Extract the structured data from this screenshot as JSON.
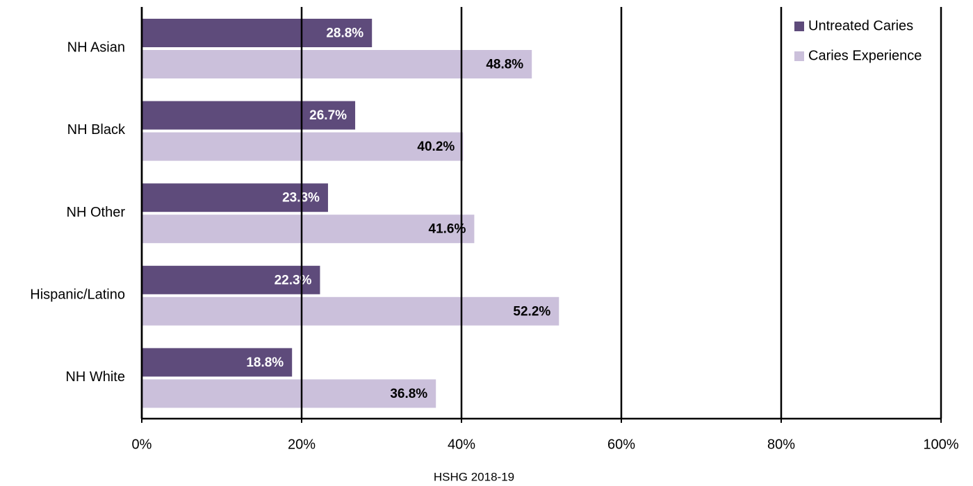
{
  "chart_data": {
    "type": "bar",
    "orientation": "horizontal",
    "categories": [
      "NH Asian",
      "NH Black",
      "NH Other",
      "Hispanic/Latino",
      "NH White"
    ],
    "series": [
      {
        "name": "Untreated Caries",
        "color": "#5e4b7b",
        "values": [
          28.8,
          26.7,
          23.3,
          22.3,
          18.8
        ],
        "value_labels": [
          "28.8%",
          "26.7%",
          "23.3%",
          "22.3%",
          "18.8%"
        ]
      },
      {
        "name": "Caries Experience",
        "color": "#cbc0db",
        "values": [
          48.8,
          40.2,
          41.6,
          52.2,
          36.8
        ],
        "value_labels": [
          "48.8%",
          "40.2%",
          "41.6%",
          "52.2%",
          "36.8%"
        ]
      }
    ],
    "xlim": [
      0,
      100
    ],
    "xticks": [
      {
        "value": 0,
        "label": "0%"
      },
      {
        "value": 20,
        "label": "20%"
      },
      {
        "value": 40,
        "label": "40%"
      },
      {
        "value": 60,
        "label": "60%"
      },
      {
        "value": 80,
        "label": "80%"
      },
      {
        "value": 100,
        "label": "100%"
      }
    ],
    "x_label": "HSHG 2018-19",
    "grid": true,
    "legend": "top-right"
  }
}
